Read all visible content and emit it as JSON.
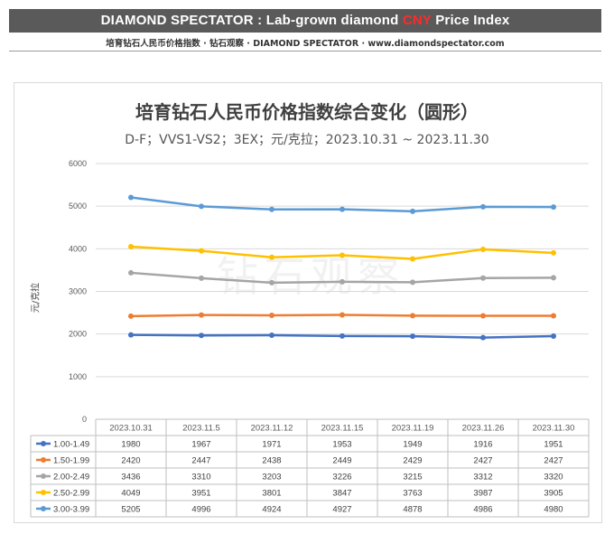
{
  "banner": {
    "prefix": "DIAMOND SPECTATOR : Lab-grown diamond ",
    "highlight": "CNY",
    "suffix": " Price Index",
    "highlight_color": "#ff2a2a"
  },
  "subbanner": "培育钻石人民币价格指数 · 钻石观察 · DIAMOND SPECTATOR · www.diamondspectator.com",
  "watermark": "钻石观察",
  "chart_data": {
    "type": "line",
    "title": "培育钻石人民币价格指数综合变化（圆形）",
    "subtitle": "D-F；VVS1-VS2；3EX；元/克拉；2023.10.31 ~ 2023.11.30",
    "ylabel": "元/克拉",
    "ylim": [
      0,
      6000
    ],
    "yticks": [
      0,
      1000,
      2000,
      3000,
      4000,
      5000,
      6000
    ],
    "grid": true,
    "legend": "data-table",
    "categories": [
      "2023.10.31",
      "2023.11.5",
      "2023.11.12",
      "2023.11.15",
      "2023.11.19",
      "2023.11.26",
      "2023.11.30"
    ],
    "series": [
      {
        "name": "1.00-1.49",
        "color": "#4472c4",
        "values": [
          1980,
          1967,
          1971,
          1953,
          1949,
          1916,
          1951
        ]
      },
      {
        "name": "1.50-1.99",
        "color": "#ed7d31",
        "values": [
          2420,
          2447,
          2438,
          2449,
          2429,
          2427,
          2427
        ]
      },
      {
        "name": "2.00-2.49",
        "color": "#a5a5a5",
        "values": [
          3436,
          3310,
          3203,
          3226,
          3215,
          3312,
          3320
        ]
      },
      {
        "name": "2.50-2.99",
        "color": "#ffc000",
        "values": [
          4049,
          3951,
          3801,
          3847,
          3763,
          3987,
          3905
        ]
      },
      {
        "name": "3.00-3.99",
        "color": "#5b9bd5",
        "values": [
          5205,
          4996,
          4924,
          4927,
          4878,
          4986,
          4980
        ]
      }
    ]
  }
}
